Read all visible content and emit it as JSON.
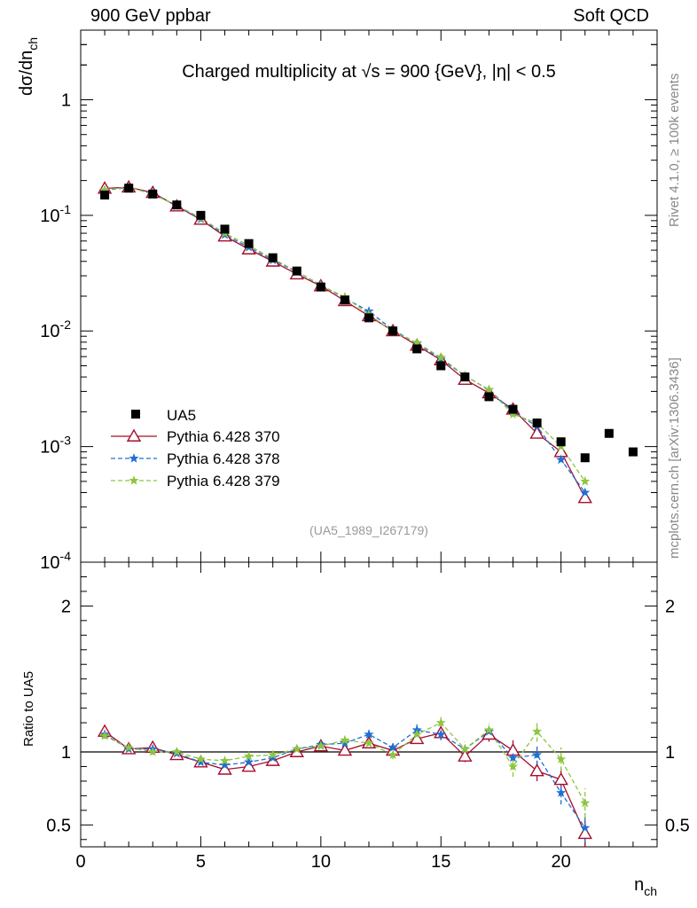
{
  "header": {
    "left": "900 GeV ppbar",
    "right": "Soft QCD"
  },
  "side_labels": {
    "rivet": "Rivet 4.1.0, ≥ 100k events",
    "mcplots": "mcplots.cern.ch [arXiv:1306.3436]"
  },
  "chart_data": {
    "type": "scatter",
    "title": "Charged multiplicity at √s = 900 {GeV}, |η| < 0.5",
    "analysis_id": "(UA5_1989_I267179)",
    "xlabel": "n_ch",
    "ylabel": "dσ/dn_ch",
    "ratio_ylabel": "Ratio to UA5",
    "xlim": [
      0,
      24
    ],
    "ylim": [
      0.0001,
      4
    ],
    "yscale": "log",
    "ratio_ylim": [
      0.35,
      2.3
    ],
    "x_ticks": [
      "0",
      "5",
      "10",
      "15",
      "20"
    ],
    "y_tick_labels": [
      "1",
      "10^-1",
      "10^-2",
      "10^-3",
      "10^-4"
    ],
    "ratio_tick_labels": [
      "0.5",
      "1",
      "2"
    ],
    "legend_position": "lower-left",
    "data": {
      "name": "UA5",
      "color": "#000000",
      "x": [
        1,
        2,
        3,
        4,
        5,
        6,
        7,
        8,
        9,
        10,
        11,
        12,
        13,
        14,
        15,
        16,
        17,
        18,
        19,
        20,
        21,
        22,
        23
      ],
      "y": [
        0.15,
        0.172,
        0.153,
        0.123,
        0.1,
        0.076,
        0.057,
        0.043,
        0.033,
        0.024,
        0.0185,
        0.013,
        0.01,
        0.007,
        0.005,
        0.004,
        0.0027,
        0.0021,
        0.0016,
        0.0011,
        0.0008,
        0.0013,
        0.0009
      ]
    },
    "series": [
      {
        "name": "Pythia 6.428 370",
        "color": "#a50f2d",
        "style": "solid",
        "marker": "open-triangle",
        "x": [
          1,
          2,
          3,
          4,
          5,
          6,
          7,
          8,
          9,
          10,
          11,
          12,
          13,
          14,
          15,
          16,
          17,
          18,
          19,
          20,
          21
        ],
        "y": [
          0.171,
          0.175,
          0.157,
          0.12,
          0.092,
          0.066,
          0.051,
          0.04,
          0.031,
          0.0245,
          0.0182,
          0.0135,
          0.01,
          0.0075,
          0.0056,
          0.0038,
          0.0029,
          0.0021,
          0.0013,
          0.0009,
          0.00036
        ],
        "ratio": [
          1.14,
          1.02,
          1.03,
          0.98,
          0.93,
          0.88,
          0.9,
          0.94,
          1.0,
          1.04,
          1.01,
          1.06,
          1.01,
          1.09,
          1.13,
          0.97,
          1.12,
          1.01,
          0.87,
          0.81,
          0.44
        ],
        "ratio_err": [
          0.02,
          0.02,
          0.02,
          0.02,
          0.02,
          0.02,
          0.02,
          0.02,
          0.02,
          0.02,
          0.02,
          0.03,
          0.03,
          0.03,
          0.04,
          0.04,
          0.05,
          0.07,
          0.07,
          0.08,
          0.09
        ]
      },
      {
        "name": "Pythia 6.428 378",
        "color": "#1f6fd6",
        "style": "dashed",
        "marker": "star",
        "x": [
          1,
          2,
          3,
          4,
          5,
          6,
          7,
          8,
          9,
          10,
          11,
          12,
          13,
          14,
          15,
          16,
          17,
          18,
          19,
          20,
          21
        ],
        "y": [
          0.165,
          0.174,
          0.155,
          0.121,
          0.093,
          0.068,
          0.053,
          0.041,
          0.0325,
          0.025,
          0.0192,
          0.0148,
          0.0102,
          0.0078,
          0.0057,
          0.0041,
          0.0031,
          0.002,
          0.0015,
          0.00077,
          0.0004
        ],
        "ratio": [
          1.12,
          1.02,
          1.02,
          0.99,
          0.93,
          0.91,
          0.93,
          0.96,
          1.02,
          1.05,
          1.06,
          1.12,
          1.03,
          1.15,
          1.12,
          1.02,
          1.14,
          0.96,
          0.98,
          0.72,
          0.48
        ],
        "ratio_err": [
          0.02,
          0.02,
          0.02,
          0.02,
          0.02,
          0.02,
          0.02,
          0.02,
          0.02,
          0.02,
          0.03,
          0.03,
          0.03,
          0.04,
          0.04,
          0.05,
          0.05,
          0.07,
          0.07,
          0.08,
          0.1
        ]
      },
      {
        "name": "Pythia 6.428 379",
        "color": "#8cc63f",
        "style": "dashed",
        "marker": "star",
        "x": [
          1,
          2,
          3,
          4,
          5,
          6,
          7,
          8,
          9,
          10,
          11,
          12,
          13,
          14,
          15,
          16,
          17,
          18,
          19,
          20,
          21
        ],
        "y": [
          0.166,
          0.176,
          0.152,
          0.122,
          0.095,
          0.07,
          0.055,
          0.042,
          0.0328,
          0.0247,
          0.0197,
          0.0139,
          0.0099,
          0.0079,
          0.0059,
          0.0041,
          0.0031,
          0.0019,
          0.0016,
          0.001,
          0.0005
        ],
        "ratio": [
          1.11,
          1.03,
          1.0,
          1.0,
          0.95,
          0.94,
          0.97,
          0.98,
          1.02,
          1.04,
          1.08,
          1.06,
          0.98,
          1.12,
          1.2,
          1.02,
          1.15,
          0.9,
          1.14,
          0.95,
          0.65
        ],
        "ratio_err": [
          0.02,
          0.02,
          0.02,
          0.02,
          0.02,
          0.02,
          0.02,
          0.02,
          0.02,
          0.02,
          0.03,
          0.03,
          0.03,
          0.04,
          0.04,
          0.05,
          0.05,
          0.07,
          0.07,
          0.08,
          0.1
        ]
      }
    ]
  }
}
